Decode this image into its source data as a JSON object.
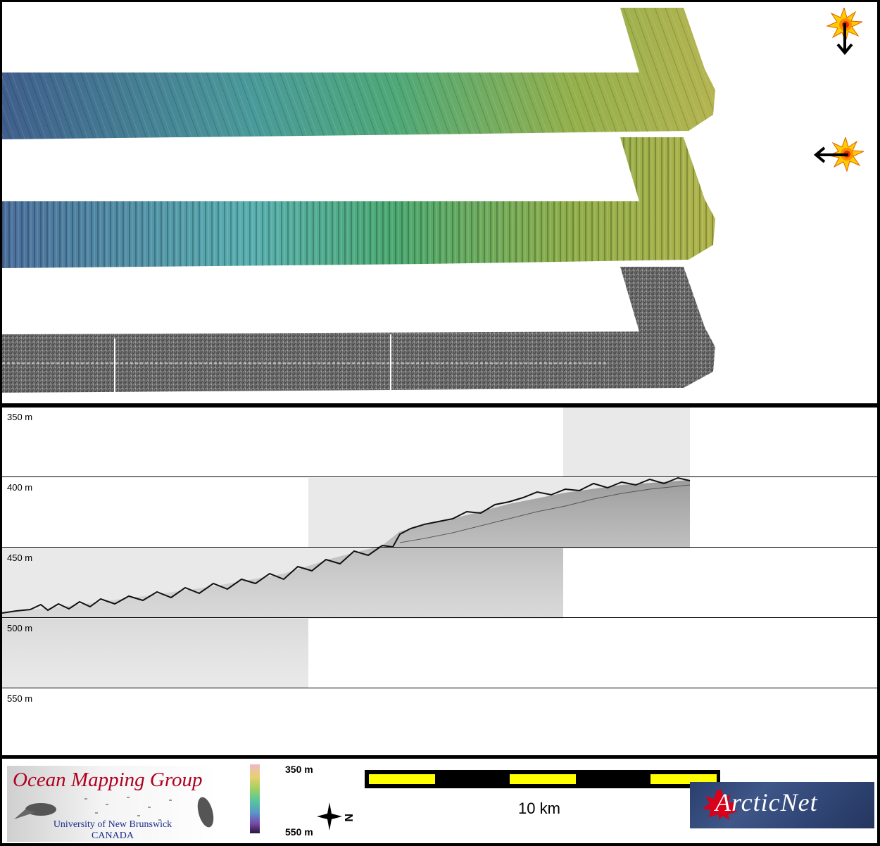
{
  "colors": {
    "bathy_west": "#3f6590",
    "bathy_mid": "#4aa88a",
    "bathy_east": "#a8b040",
    "backscatter": "#6a6a6a",
    "sun": "#ffcc00",
    "scale_fill": "#ffff00",
    "omg_title": "#b0001f",
    "omg_subtitle": "#1c2f8c"
  },
  "swath_panel": {
    "panels": [
      {
        "name": "bathymetry-sun-from-north",
        "kind": "shaded-bathymetry"
      },
      {
        "name": "bathymetry-sun-from-east",
        "kind": "shaded-bathymetry"
      },
      {
        "name": "backscatter",
        "kind": "backscatter-mosaic"
      }
    ],
    "sun_icons": [
      {
        "icon": "sun-icon",
        "arrow": "arrow-down-icon"
      },
      {
        "icon": "sun-icon",
        "arrow": "arrow-left-icon"
      }
    ]
  },
  "profile": {
    "depth_labels": [
      "350 m",
      "400 m",
      "450 m",
      "500 m",
      "550 m"
    ]
  },
  "footer": {
    "omg_logo": {
      "title": "Ocean Mapping Group",
      "university": "University of New Brunswick",
      "country": "CANADA"
    },
    "colorbar": {
      "top_label": "350 m",
      "bottom_label": "550 m"
    },
    "compass": {
      "icon": "north-arrow-icon",
      "label": "N"
    },
    "scale": {
      "label": "10 km"
    },
    "arcticnet_logo": {
      "text": "ArcticNet"
    }
  }
}
